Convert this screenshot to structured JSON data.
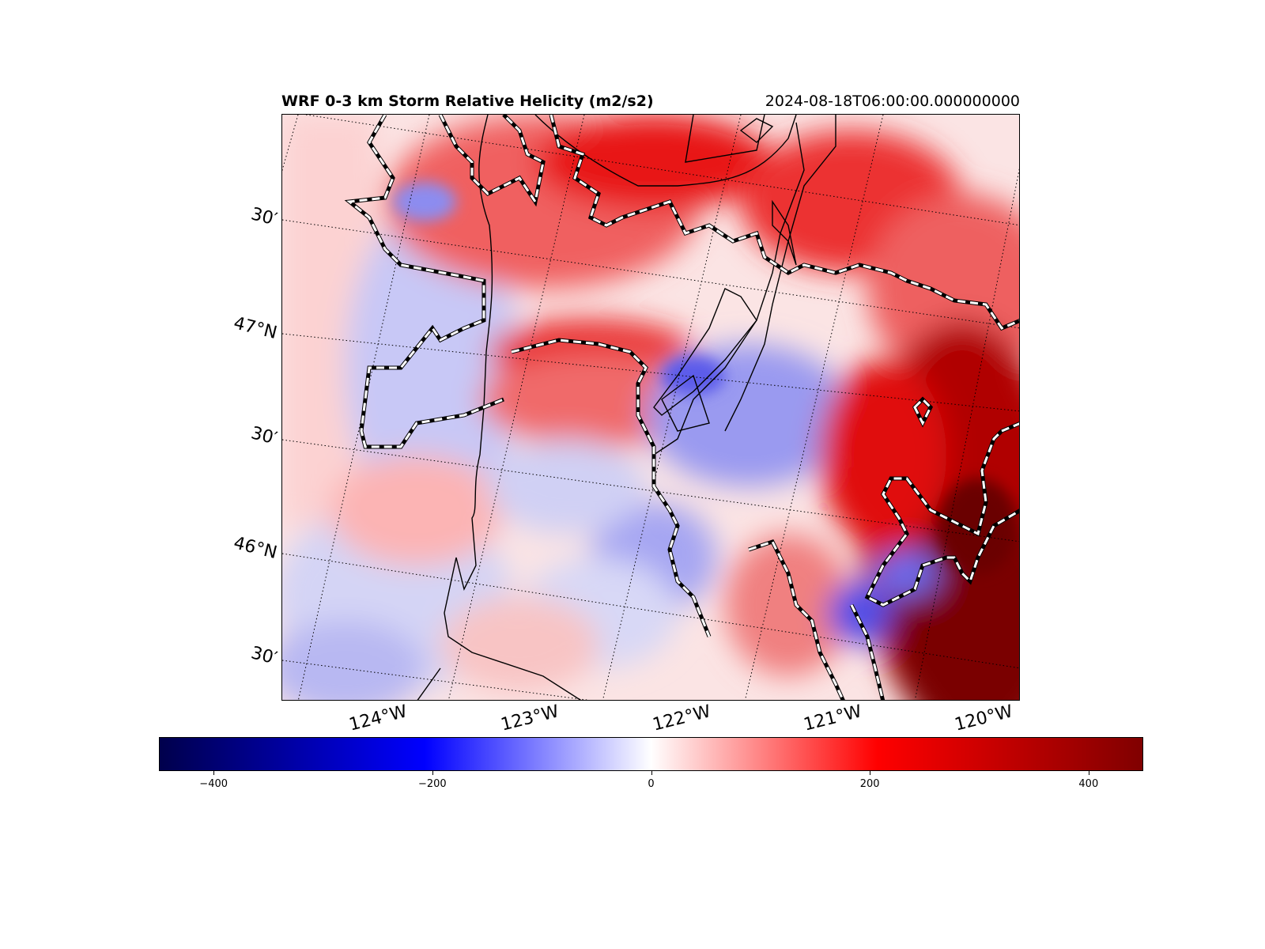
{
  "header": {
    "title": "WRF 0-3 km Storm Relative Helicity (m2/s2)",
    "valid_time": "2024-08-18T06:00:00.000000000"
  },
  "map": {
    "lat_labels": [
      "30′",
      "47°N",
      "30′",
      "46°N",
      "30′"
    ],
    "lon_labels": [
      "124°W",
      "123°W",
      "122°W",
      "121°W",
      "120°W"
    ],
    "colormap": "seismic",
    "colors": {
      "strong_negative": "#00004c",
      "negative": "#0000ff",
      "neutral": "#ffffff",
      "positive": "#ff0000",
      "strong_positive": "#800000"
    }
  },
  "colorbar": {
    "min": -450,
    "max": 450,
    "ticks": [
      {
        "value": -400,
        "label": "−400"
      },
      {
        "value": -200,
        "label": "−200"
      },
      {
        "value": 0,
        "label": "0"
      },
      {
        "value": 200,
        "label": "200"
      },
      {
        "value": 400,
        "label": "400"
      }
    ]
  }
}
